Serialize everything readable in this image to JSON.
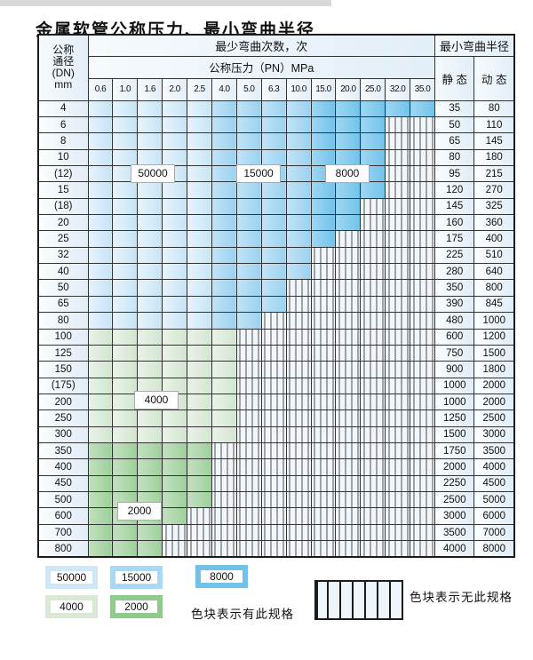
{
  "title": "金属软管公称压力、最小弯曲半径",
  "table": {
    "header": {
      "dn_lines": [
        "公称",
        "通径",
        "(DN)",
        "mm"
      ],
      "bend_cycles": "最少弯曲次数，次",
      "nominal_pressure": "公称压力（PN）MPa",
      "min_bend_radius": "最小弯曲半径",
      "static_label": "静 态",
      "dynamic_label": "动 态"
    },
    "pressure_columns": [
      "0.6",
      "1.0",
      "1.6",
      "2.0",
      "2.5",
      "4.0",
      "5.0",
      "6.3",
      "10.0",
      "15.0",
      "20.0",
      "25.0",
      "32.0",
      "35.0"
    ],
    "rows": [
      {
        "dn": "4",
        "colored": 14,
        "static": "35",
        "dyn": "80",
        "band": "blue"
      },
      {
        "dn": "6",
        "colored": 12,
        "static": "50",
        "dyn": "110",
        "band": "blue"
      },
      {
        "dn": "8",
        "colored": 12,
        "static": "65",
        "dyn": "145",
        "band": "blue"
      },
      {
        "dn": "10",
        "colored": 12,
        "static": "80",
        "dyn": "180",
        "band": "blue"
      },
      {
        "dn": "(12)",
        "colored": 12,
        "static": "95",
        "dyn": "215",
        "band": "blue"
      },
      {
        "dn": "15",
        "colored": 12,
        "static": "120",
        "dyn": "270",
        "band": "blue"
      },
      {
        "dn": "(18)",
        "colored": 11,
        "static": "145",
        "dyn": "325",
        "band": "blue"
      },
      {
        "dn": "20",
        "colored": 11,
        "static": "160",
        "dyn": "360",
        "band": "blue"
      },
      {
        "dn": "25",
        "colored": 10,
        "static": "175",
        "dyn": "400",
        "band": "blue"
      },
      {
        "dn": "32",
        "colored": 9,
        "static": "225",
        "dyn": "510",
        "band": "blue"
      },
      {
        "dn": "40",
        "colored": 9,
        "static": "280",
        "dyn": "640",
        "band": "blue"
      },
      {
        "dn": "50",
        "colored": 8,
        "static": "350",
        "dyn": "800",
        "band": "blue"
      },
      {
        "dn": "65",
        "colored": 8,
        "static": "390",
        "dyn": "845",
        "band": "blue"
      },
      {
        "dn": "80",
        "colored": 7,
        "static": "480",
        "dyn": "1000",
        "band": "blue"
      },
      {
        "dn": "100",
        "colored": 6,
        "static": "600",
        "dyn": "1200",
        "band": "green_light"
      },
      {
        "dn": "125",
        "colored": 6,
        "static": "750",
        "dyn": "1500",
        "band": "green_light"
      },
      {
        "dn": "150",
        "colored": 6,
        "static": "900",
        "dyn": "1800",
        "band": "green_light"
      },
      {
        "dn": "(175)",
        "colored": 6,
        "static": "1000",
        "dyn": "2000",
        "band": "green_light"
      },
      {
        "dn": "200",
        "colored": 6,
        "static": "1000",
        "dyn": "2000",
        "band": "green_light"
      },
      {
        "dn": "250",
        "colored": 6,
        "static": "1250",
        "dyn": "2500",
        "band": "green_light"
      },
      {
        "dn": "300",
        "colored": 6,
        "static": "1500",
        "dyn": "3000",
        "band": "green_light"
      },
      {
        "dn": "350",
        "colored": 5,
        "static": "1750",
        "dyn": "3500",
        "band": "green_dark"
      },
      {
        "dn": "400",
        "colored": 5,
        "static": "2000",
        "dyn": "4000",
        "band": "green_dark"
      },
      {
        "dn": "450",
        "colored": 5,
        "static": "2250",
        "dyn": "4500",
        "band": "green_dark"
      },
      {
        "dn": "500",
        "colored": 5,
        "static": "2500",
        "dyn": "5000",
        "band": "green_dark"
      },
      {
        "dn": "600",
        "colored": 4,
        "static": "3000",
        "dyn": "6000",
        "band": "green_dark"
      },
      {
        "dn": "700",
        "colored": 3,
        "static": "3500",
        "dyn": "7000",
        "band": "green_dark"
      },
      {
        "dn": "800",
        "colored": 3,
        "static": "4000",
        "dyn": "8000",
        "band": "green_dark"
      }
    ]
  },
  "cycle_labels": [
    "50000",
    "15000",
    "8000",
    "4000",
    "2000"
  ],
  "palette": {
    "blue_50000": "#c6e4f6",
    "blue_15000": "#9bd2f0",
    "blue_8000": "#72c2eb",
    "green_4000": "#d2e6cf",
    "green_2000": "#9cd099"
  },
  "legend": {
    "items": [
      {
        "label": "50000",
        "color": "#cfe7f6"
      },
      {
        "label": "15000",
        "color": "#a9d8f2"
      },
      {
        "label": "8000",
        "color": "#72c1ea"
      },
      {
        "label": "4000",
        "color": "#d9e9d5"
      },
      {
        "label": "2000",
        "color": "#8fcb8d"
      }
    ],
    "available_note": "色块表示有此规格",
    "unavailable_note": "色块表示无此规格"
  }
}
